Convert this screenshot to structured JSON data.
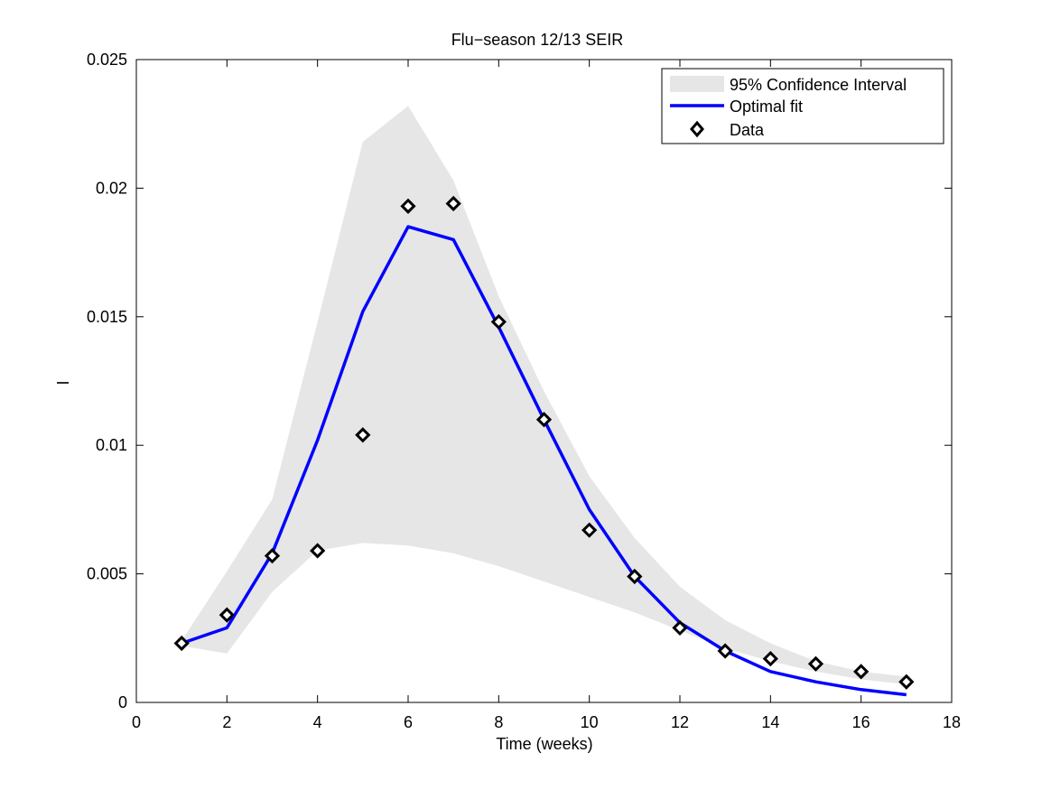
{
  "chart_data": {
    "type": "line",
    "title": "Flu−season  12/13  SEIR",
    "xlabel": "Time (weeks)",
    "ylabel": "I",
    "xlim": [
      0,
      18
    ],
    "ylim": [
      0,
      0.025
    ],
    "xticks": [
      0,
      2,
      4,
      6,
      8,
      10,
      12,
      14,
      16,
      18
    ],
    "yticks": [
      0,
      0.005,
      0.01,
      0.015,
      0.02,
      0.025
    ],
    "xtick_labels": [
      "0",
      "2",
      "4",
      "6",
      "8",
      "10",
      "12",
      "14",
      "16",
      "18"
    ],
    "ytick_labels": [
      "0",
      "0.005",
      "0.01",
      "0.015",
      "0.02",
      "0.025"
    ],
    "grid": false,
    "legend_position": "top-right",
    "x": [
      1,
      2,
      3,
      4,
      5,
      6,
      7,
      8,
      9,
      10,
      11,
      12,
      13,
      14,
      15,
      16,
      17
    ],
    "series": [
      {
        "name": "95% Confidence Interval",
        "kind": "band",
        "color": "#e6e6e6",
        "lower": [
          0.0022,
          0.0019,
          0.0043,
          0.0059,
          0.0062,
          0.0061,
          0.0058,
          0.0053,
          0.0047,
          0.0041,
          0.0035,
          0.0028,
          0.0021,
          0.0016,
          0.0012,
          0.0009,
          0.0007
        ],
        "upper": [
          0.0024,
          0.0051,
          0.0079,
          0.0148,
          0.0218,
          0.0232,
          0.0203,
          0.0158,
          0.0121,
          0.0088,
          0.0064,
          0.0045,
          0.0032,
          0.0023,
          0.0016,
          0.0012,
          0.001
        ]
      },
      {
        "name": "Optimal fit",
        "kind": "line",
        "color": "#0000ff",
        "values": [
          0.0023,
          0.0029,
          0.0058,
          0.0102,
          0.0152,
          0.0185,
          0.018,
          0.0146,
          0.011,
          0.0075,
          0.0049,
          0.0031,
          0.002,
          0.0012,
          0.0008,
          0.0005,
          0.0003
        ]
      },
      {
        "name": "Data",
        "kind": "scatter",
        "marker": "diamond",
        "color": "#000000",
        "values": [
          0.0023,
          0.0034,
          0.0057,
          0.0059,
          0.0104,
          0.0193,
          0.0194,
          0.0148,
          0.011,
          0.0067,
          0.0049,
          0.0029,
          0.002,
          0.0017,
          0.0015,
          0.0012,
          0.0008
        ]
      }
    ]
  }
}
